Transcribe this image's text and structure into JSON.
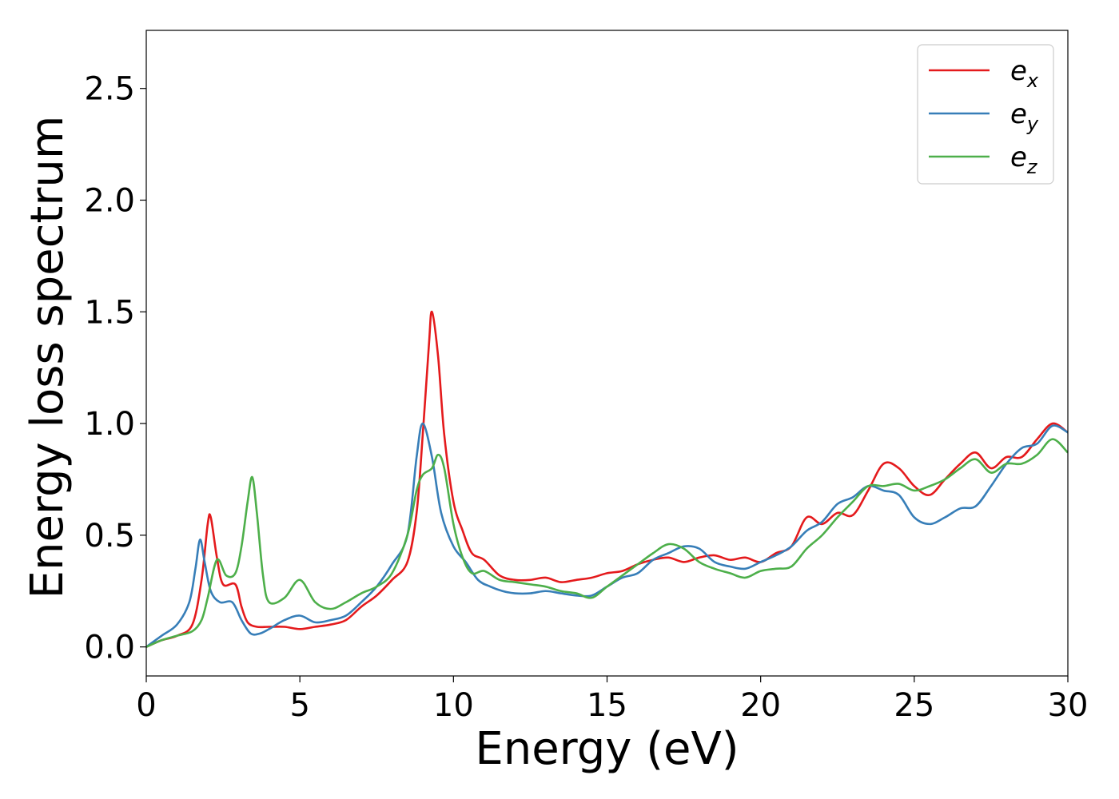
{
  "chart_data": {
    "type": "line",
    "xlabel": "Energy (eV)",
    "ylabel": "Energy loss spectrum",
    "xlim": [
      0,
      30
    ],
    "ylim": [
      -0.13,
      2.76
    ],
    "xticks": [
      0,
      5,
      10,
      15,
      20,
      25,
      30
    ],
    "xtick_labels": [
      "0",
      "5",
      "10",
      "15",
      "20",
      "25",
      "30"
    ],
    "yticks": [
      0.0,
      0.5,
      1.0,
      1.5,
      2.0,
      2.5
    ],
    "ytick_labels": [
      "0.0",
      "0.5",
      "1.0",
      "1.5",
      "2.0",
      "2.5"
    ],
    "grid": false,
    "legend_position": "top-right",
    "series": [
      {
        "name_base": "e",
        "name_sub": "x",
        "color": "#e41a1c",
        "x": [
          0,
          0.5,
          1,
          1.5,
          1.8,
          2.0,
          2.1,
          2.3,
          2.5,
          2.9,
          3.1,
          3.3,
          3.6,
          4.0,
          4.5,
          5.0,
          5.5,
          6.0,
          6.5,
          7.0,
          7.5,
          8.0,
          8.5,
          8.8,
          9.0,
          9.2,
          9.3,
          9.5,
          9.7,
          10.0,
          10.3,
          10.6,
          11.0,
          11.5,
          12.0,
          12.5,
          13.0,
          13.5,
          14.0,
          14.5,
          15.0,
          15.5,
          16.0,
          16.5,
          17.0,
          17.5,
          18.0,
          18.5,
          19.0,
          19.5,
          20.0,
          20.5,
          21.0,
          21.5,
          22.0,
          22.5,
          23.0,
          23.5,
          24.0,
          24.5,
          25.0,
          25.5,
          26.0,
          26.5,
          27.0,
          27.5,
          28.0,
          28.5,
          29.0,
          29.5,
          30.0
        ],
        "y": [
          0.0,
          0.03,
          0.05,
          0.1,
          0.3,
          0.55,
          0.58,
          0.4,
          0.28,
          0.28,
          0.18,
          0.11,
          0.09,
          0.09,
          0.09,
          0.08,
          0.09,
          0.1,
          0.12,
          0.18,
          0.23,
          0.3,
          0.38,
          0.6,
          0.95,
          1.35,
          1.5,
          1.3,
          0.95,
          0.65,
          0.52,
          0.42,
          0.39,
          0.32,
          0.3,
          0.3,
          0.31,
          0.29,
          0.3,
          0.31,
          0.33,
          0.34,
          0.37,
          0.39,
          0.4,
          0.38,
          0.4,
          0.41,
          0.39,
          0.4,
          0.38,
          0.42,
          0.45,
          0.58,
          0.55,
          0.6,
          0.59,
          0.7,
          0.82,
          0.8,
          0.72,
          0.68,
          0.75,
          0.82,
          0.87,
          0.8,
          0.85,
          0.85,
          0.93,
          1.0,
          0.96
        ]
      },
      {
        "name_base": "e",
        "name_sub": "y",
        "color": "#377eb8",
        "x": [
          0,
          0.5,
          1,
          1.4,
          1.6,
          1.75,
          1.9,
          2.1,
          2.4,
          2.8,
          3.1,
          3.4,
          3.7,
          4.0,
          4.5,
          5.0,
          5.5,
          6.0,
          6.5,
          7.0,
          7.5,
          8.0,
          8.5,
          8.8,
          9.0,
          9.3,
          9.6,
          10.0,
          10.4,
          10.8,
          11.2,
          11.6,
          12.0,
          12.5,
          13.0,
          13.5,
          14.0,
          14.5,
          15.0,
          15.5,
          16.0,
          16.5,
          17.0,
          17.5,
          18.0,
          18.5,
          19.0,
          19.5,
          20.0,
          20.5,
          21.0,
          21.5,
          22.0,
          22.5,
          23.0,
          23.5,
          24.0,
          24.5,
          25.0,
          25.5,
          26.0,
          26.5,
          27.0,
          27.5,
          28.0,
          28.5,
          29.0,
          29.5,
          30.0
        ],
        "y": [
          0.0,
          0.05,
          0.1,
          0.2,
          0.35,
          0.48,
          0.38,
          0.25,
          0.2,
          0.2,
          0.12,
          0.06,
          0.06,
          0.08,
          0.12,
          0.14,
          0.11,
          0.12,
          0.14,
          0.2,
          0.27,
          0.37,
          0.5,
          0.85,
          1.0,
          0.85,
          0.6,
          0.45,
          0.38,
          0.3,
          0.27,
          0.25,
          0.24,
          0.24,
          0.25,
          0.24,
          0.23,
          0.23,
          0.27,
          0.31,
          0.33,
          0.39,
          0.42,
          0.45,
          0.44,
          0.38,
          0.36,
          0.35,
          0.38,
          0.41,
          0.45,
          0.52,
          0.56,
          0.64,
          0.67,
          0.72,
          0.7,
          0.68,
          0.58,
          0.55,
          0.58,
          0.62,
          0.63,
          0.72,
          0.82,
          0.89,
          0.91,
          0.99,
          0.96
        ]
      },
      {
        "name_base": "e",
        "name_sub": "z",
        "color": "#4daf4a",
        "x": [
          0,
          0.5,
          1,
          1.5,
          1.8,
          2.0,
          2.3,
          2.6,
          2.9,
          3.1,
          3.3,
          3.45,
          3.6,
          3.8,
          4.0,
          4.5,
          5.0,
          5.5,
          6.0,
          6.5,
          7.0,
          7.5,
          8.0,
          8.5,
          8.8,
          9.0,
          9.3,
          9.5,
          9.7,
          10.0,
          10.3,
          10.6,
          11.0,
          11.5,
          12.0,
          12.5,
          13.0,
          13.5,
          14.0,
          14.5,
          15.0,
          15.5,
          16.0,
          16.5,
          17.0,
          17.5,
          18.0,
          18.5,
          19.0,
          19.5,
          20.0,
          20.5,
          21.0,
          21.5,
          22.0,
          22.5,
          23.0,
          23.5,
          24.0,
          24.5,
          25.0,
          25.5,
          26.0,
          26.5,
          27.0,
          27.5,
          28.0,
          28.5,
          29.0,
          29.5,
          30.0
        ],
        "y": [
          0.0,
          0.03,
          0.05,
          0.07,
          0.12,
          0.22,
          0.39,
          0.32,
          0.33,
          0.45,
          0.65,
          0.76,
          0.6,
          0.32,
          0.2,
          0.22,
          0.3,
          0.2,
          0.17,
          0.2,
          0.24,
          0.27,
          0.33,
          0.5,
          0.7,
          0.77,
          0.8,
          0.86,
          0.8,
          0.55,
          0.4,
          0.33,
          0.34,
          0.3,
          0.29,
          0.28,
          0.27,
          0.25,
          0.24,
          0.22,
          0.27,
          0.32,
          0.37,
          0.42,
          0.46,
          0.44,
          0.38,
          0.35,
          0.33,
          0.31,
          0.34,
          0.35,
          0.36,
          0.44,
          0.5,
          0.58,
          0.65,
          0.72,
          0.72,
          0.73,
          0.7,
          0.72,
          0.75,
          0.8,
          0.84,
          0.78,
          0.82,
          0.82,
          0.86,
          0.93,
          0.87
        ]
      }
    ]
  }
}
